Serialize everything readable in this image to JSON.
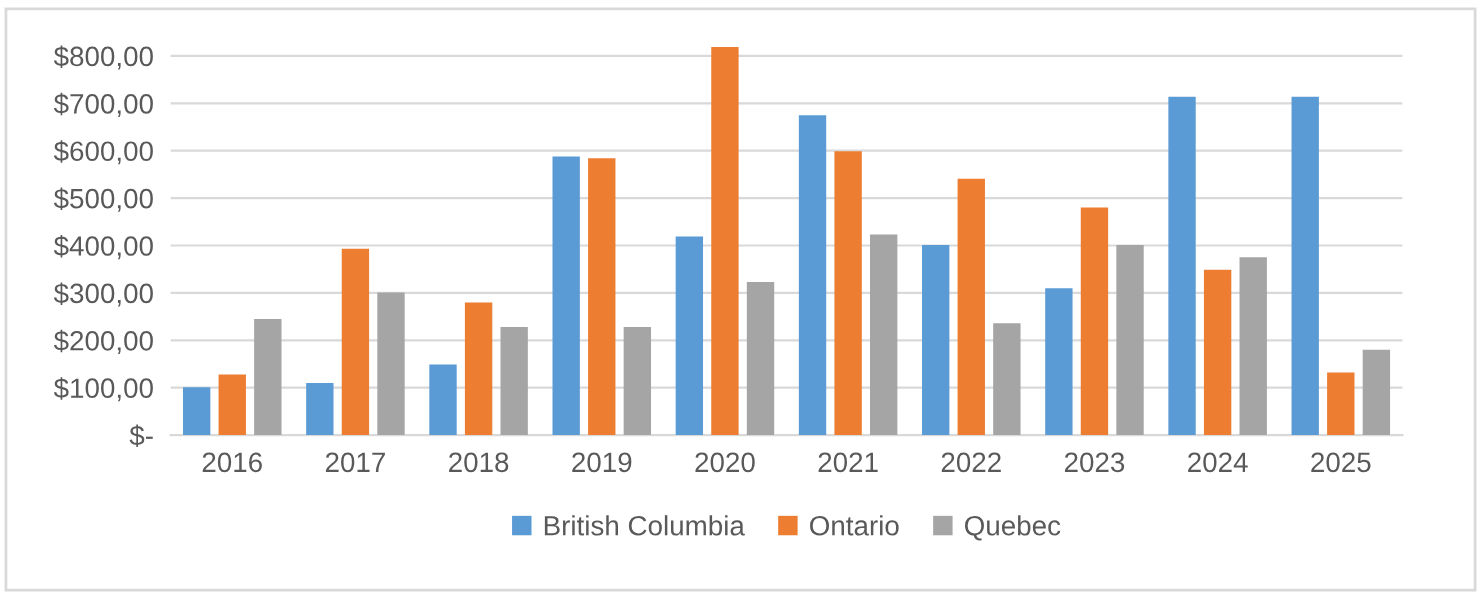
{
  "chart_data": {
    "type": "bar",
    "categories": [
      "2016",
      "2017",
      "2018",
      "2019",
      "2020",
      "2021",
      "2022",
      "2023",
      "2024",
      "2025"
    ],
    "series": [
      {
        "name": "British Columbia",
        "color": "#5b9bd5",
        "values": [
          101,
          110,
          149,
          588,
          419,
          675,
          401,
          310,
          714,
          714
        ]
      },
      {
        "name": "Ontario",
        "color": "#ed7d31",
        "values": [
          128,
          393,
          280,
          584,
          819,
          599,
          541,
          480,
          349,
          132
        ]
      },
      {
        "name": "Quebec",
        "color": "#a5a5a5",
        "values": [
          245,
          301,
          228,
          228,
          323,
          423,
          236,
          401,
          375,
          180
        ]
      }
    ],
    "ylim": [
      0,
      830
    ],
    "yticks": [
      {
        "value": 0,
        "label": "$-"
      },
      {
        "value": 100,
        "label": "$100,00"
      },
      {
        "value": 200,
        "label": "$200,00"
      },
      {
        "value": 300,
        "label": "$300,00"
      },
      {
        "value": 400,
        "label": "$400,00"
      },
      {
        "value": 500,
        "label": "$500,00"
      },
      {
        "value": 600,
        "label": "$600,00"
      },
      {
        "value": 700,
        "label": "$700,00"
      },
      {
        "value": 800,
        "label": "$800,00"
      }
    ],
    "grid": "y",
    "legend": "bottom"
  }
}
